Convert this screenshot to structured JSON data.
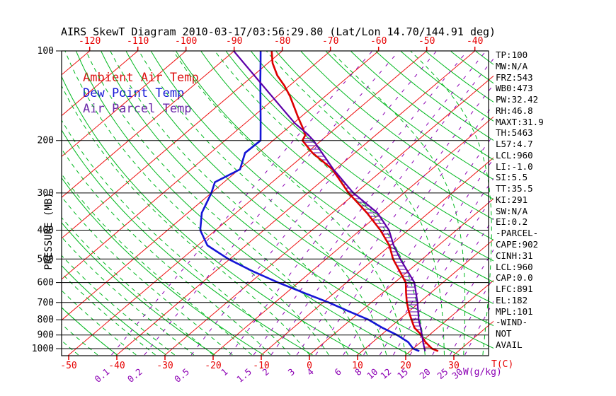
{
  "title": "AIRS SkewT Diagram 2010-03-17/03:56:29.80 (Lat/Lon 14.70/144.91 deg)",
  "legend": {
    "ambient": "Ambient Air Temp",
    "dew": "Dew Point Temp",
    "parcel": "Air Parcel Temp"
  },
  "axis": {
    "pressure_label": "PRESSURE (MB)",
    "temp_unit": "T(C)",
    "mixing_unit": "W(g/kg)"
  },
  "stats": {
    "lines": [
      "TP:100",
      "MW:N/A",
      "FRZ:543",
      "WB0:473",
      "PW:32.42",
      "RH:46.8",
      "MAXT:31.9",
      "TH:5463",
      "L57:4.7",
      "LCL:960",
      "LI:-1.0",
      "SI:5.5",
      "TT:35.5",
      "KI:291",
      "SW:N/A",
      "EI:0.2",
      "-PARCEL-",
      "CAPE:902",
      "CINH:31",
      "LCL:960",
      "CAP:0.0",
      "LFC:891",
      "EL:182",
      "MPL:101",
      "-WIND-",
      "NOT",
      "AVAIL"
    ]
  },
  "colors": {
    "isotherm": "#ee1111",
    "dry_adiabat": "#00b81e",
    "moist_adiabat": "#00b81e",
    "mixing_ratio": "#8c00b4",
    "pressure_line": "#000000",
    "ambient_curve": "#dd0000",
    "dew_curve": "#1515d6",
    "parcel_curve": "#5c00a8",
    "hatch_positive": "#5c00a8",
    "hatch_negative": "#dd0000"
  },
  "chart_data": {
    "type": "line",
    "variant": "skew-t-log-p",
    "title": "AIRS SkewT Diagram 2010-03-17/03:56:29.80 (Lat/Lon 14.70/144.91 deg)",
    "y_axis": {
      "label": "PRESSURE (MB)",
      "scale": "log",
      "range_mb": [
        100,
        1050
      ],
      "ticks_mb": [
        100,
        200,
        300,
        400,
        500,
        600,
        700,
        800,
        900,
        1000
      ]
    },
    "x_axis": {
      "label": "T(C)",
      "bottom_ticks_c": [
        -50,
        -40,
        -30,
        -20,
        -10,
        0,
        10,
        20,
        30
      ],
      "top_ticks_c": [
        -120,
        -110,
        -100,
        -90,
        -80,
        -70,
        -60,
        -50,
        -40
      ]
    },
    "mixing_ratio_lines_g_kg": [
      0.1,
      0.2,
      0.5,
      1,
      1.5,
      2,
      3,
      4,
      6,
      8,
      10,
      12,
      15,
      20,
      25,
      30
    ],
    "background": {
      "isotherms_c": {
        "min": -130,
        "max": 40,
        "step": 10
      },
      "dry_adiabats_theta_k": {
        "min": 230,
        "max": 470,
        "step": 10
      },
      "moist_adiabats_start_c": {
        "min": -60,
        "max": 40,
        "step": 4
      }
    },
    "series": [
      {
        "name": "Ambient Air Temp",
        "color": "#dd0000",
        "width": 2.6,
        "points_p_t": [
          [
            100,
            -82.2
          ],
          [
            110,
            -79
          ],
          [
            121,
            -75
          ],
          [
            131,
            -71
          ],
          [
            142,
            -67.3
          ],
          [
            154,
            -63.9
          ],
          [
            167,
            -60.5
          ],
          [
            181,
            -57
          ],
          [
            192,
            -54.6
          ],
          [
            200,
            -53.9
          ],
          [
            220,
            -48.8
          ],
          [
            250,
            -40.6
          ],
          [
            300,
            -31.5
          ],
          [
            350,
            -22.8
          ],
          [
            400,
            -15.8
          ],
          [
            450,
            -10.2
          ],
          [
            500,
            -6.1
          ],
          [
            550,
            -1.7
          ],
          [
            600,
            2.3
          ],
          [
            650,
            4.9
          ],
          [
            700,
            7.4
          ],
          [
            750,
            10
          ],
          [
            800,
            12.6
          ],
          [
            850,
            15.1
          ],
          [
            891,
            17.8
          ],
          [
            950,
            20.9
          ],
          [
            1000,
            23.9
          ],
          [
            1020,
            25.8
          ]
        ]
      },
      {
        "name": "Dew Point Temp",
        "color": "#1515d6",
        "width": 2.6,
        "points_p_t": [
          [
            100,
            -84.5
          ],
          [
            110,
            -81.5
          ],
          [
            125,
            -77.5
          ],
          [
            150,
            -71.7
          ],
          [
            175,
            -66.8
          ],
          [
            200,
            -62.6
          ],
          [
            220,
            -62.8
          ],
          [
            250,
            -59.8
          ],
          [
            276,
            -61.9
          ],
          [
            300,
            -60.0
          ],
          [
            350,
            -57.1
          ],
          [
            400,
            -53.2
          ],
          [
            450,
            -48.0
          ],
          [
            500,
            -40.3
          ],
          [
            550,
            -32.2
          ],
          [
            600,
            -24.2
          ],
          [
            650,
            -16.3
          ],
          [
            700,
            -8.8
          ],
          [
            750,
            -2.4
          ],
          [
            800,
            3.7
          ],
          [
            850,
            8.4
          ],
          [
            900,
            13.3
          ],
          [
            950,
            17.3
          ],
          [
            1000,
            20.0
          ],
          [
            1020,
            21.9
          ]
        ]
      },
      {
        "name": "Air Parcel Temp",
        "color": "#5c00a8",
        "width": 2.2,
        "points_p_t": [
          [
            100,
            -90.1
          ],
          [
            125,
            -78.0
          ],
          [
            150,
            -68.1
          ],
          [
            175,
            -59.7
          ],
          [
            190,
            -54.5
          ],
          [
            200,
            -51.6
          ],
          [
            250,
            -40.4
          ],
          [
            300,
            -30.5
          ],
          [
            350,
            -20.6
          ],
          [
            400,
            -14.0
          ],
          [
            450,
            -9.3
          ],
          [
            500,
            -4.6
          ],
          [
            600,
            4.1
          ],
          [
            700,
            9.6
          ],
          [
            800,
            14.1
          ],
          [
            850,
            16.4
          ],
          [
            900,
            18.5
          ],
          [
            960,
            20.8
          ],
          [
            1020,
            23.1
          ]
        ]
      }
    ],
    "indices": {
      "tropopause_mb": 100,
      "freezing_level_mb": 543,
      "lcl_mb": 960,
      "lfc_mb": 891,
      "el_mb": 182,
      "cape_j_kg": 902,
      "cinh_j_kg": 31
    }
  }
}
